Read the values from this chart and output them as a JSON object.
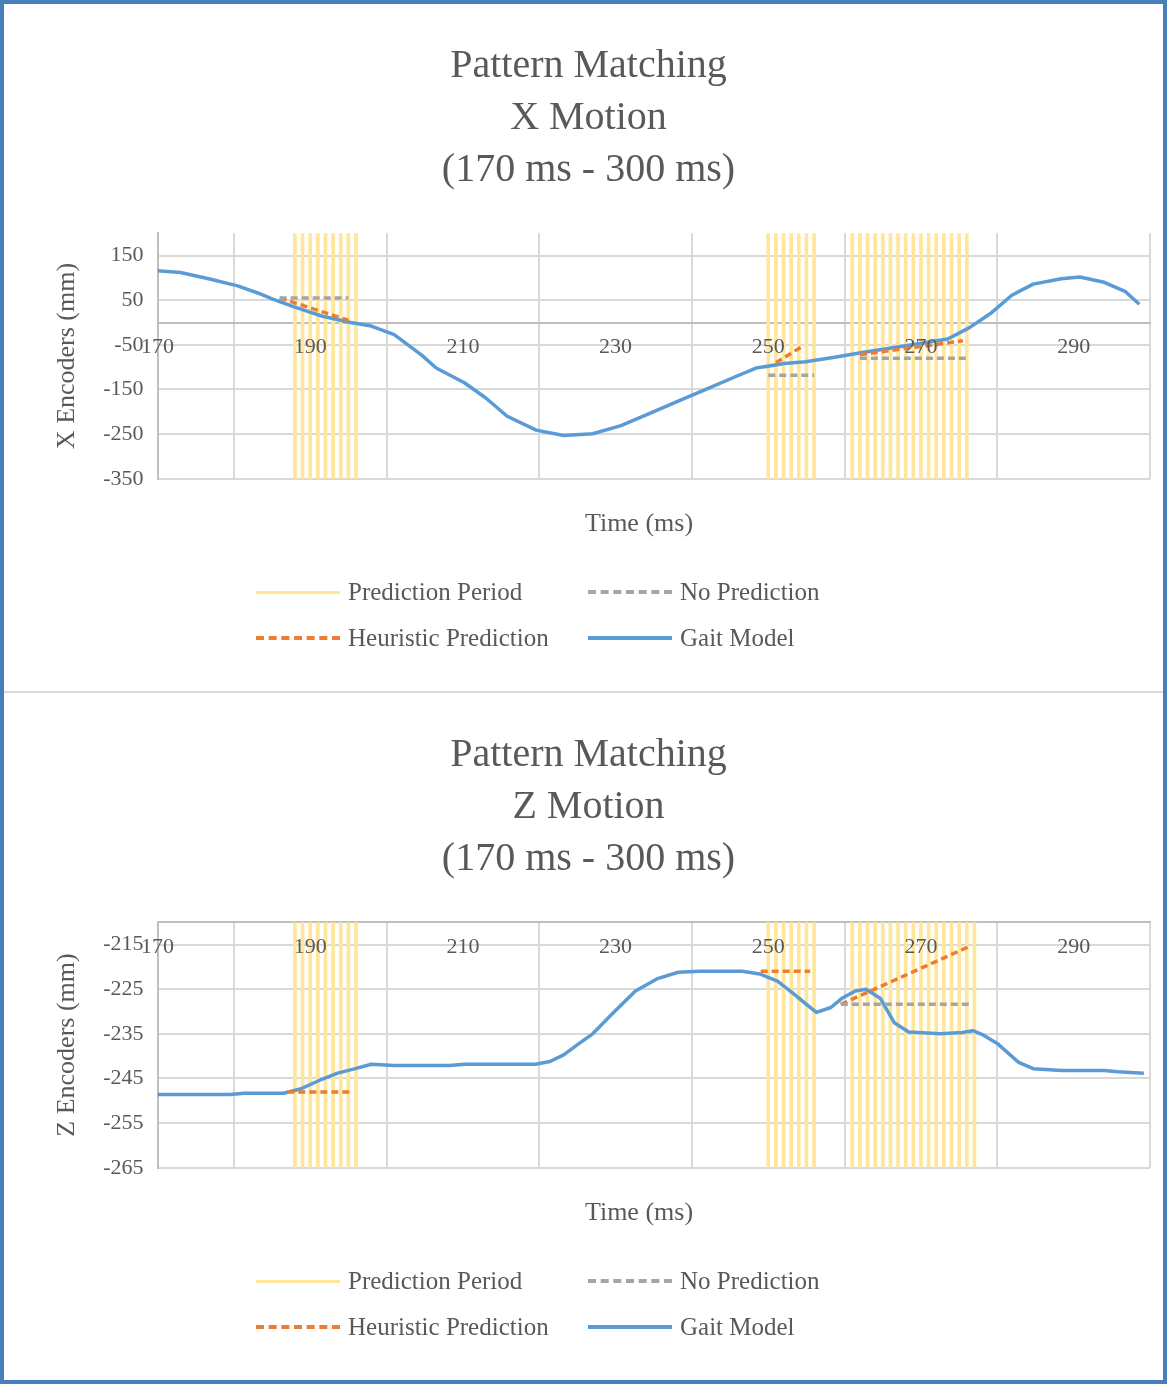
{
  "chart_data": [
    {
      "type": "line",
      "title": "Pattern Matching\nX Motion\n(170 ms - 300 ms)",
      "xlabel": "Time (ms)",
      "ylabel": "X Encoders (mm)",
      "xlim": [
        170,
        300
      ],
      "xticks": [
        170,
        190,
        210,
        230,
        250,
        270,
        290
      ],
      "ylim": [
        -350,
        200
      ],
      "yticks": [
        -350,
        -250,
        -150,
        -50,
        50,
        150
      ],
      "grid": true,
      "legend": "bottom",
      "series": [
        {
          "name": "Prediction Period",
          "type": "bar",
          "color": "#ffe699",
          "x": [
            188,
            189,
            190,
            191,
            192,
            193,
            194,
            195,
            196,
            250,
            251,
            252,
            253,
            254,
            255,
            256,
            261,
            262,
            263,
            264,
            265,
            266,
            267,
            268,
            269,
            270,
            271,
            272,
            273,
            274,
            275,
            276
          ],
          "base": [
            -350,
            -350,
            -350,
            -350,
            -350,
            -350,
            -350,
            -350,
            -350,
            -350,
            -350,
            -350,
            -350,
            -350,
            -350,
            -350,
            -350,
            -350,
            -350,
            -350,
            -350,
            -350,
            -350,
            -350,
            -350,
            -350,
            -350,
            -350,
            -350,
            -350,
            -350,
            -350
          ],
          "values": [
            550,
            550,
            550,
            550,
            550,
            550,
            550,
            550,
            550,
            550,
            550,
            550,
            550,
            550,
            550,
            550,
            550,
            550,
            550,
            550,
            550,
            550,
            550,
            550,
            550,
            550,
            550,
            550,
            550,
            550,
            550,
            550
          ]
        },
        {
          "name": "No Prediction",
          "color": "#a5a5a5",
          "line_style": "dashed",
          "x": [
            186,
            195
          ],
          "values": [
            55,
            55
          ]
        },
        {
          "color": "#a5a5a5",
          "line_style": "dashed",
          "x": [
            250,
            256
          ],
          "values": [
            -118,
            -118
          ]
        },
        {
          "color": "#a5a5a5",
          "line_style": "dashed",
          "x": [
            262,
            276
          ],
          "values": [
            -80,
            -80
          ]
        },
        {
          "name": "Heuristic Prediction",
          "color": "#ed7d31",
          "line_style": "dashed",
          "x": [
            186,
            195
          ],
          "values": [
            55,
            5
          ]
        },
        {
          "color": "#ed7d31",
          "line_style": "dashed",
          "x": [
            251,
            254.5
          ],
          "values": [
            -90,
            -53
          ]
        },
        {
          "color": "#ed7d31",
          "line_style": "dashed",
          "x": [
            262,
            275.5
          ],
          "values": [
            -72,
            -41
          ]
        },
        {
          "name": "Gait Model",
          "color": "#5b9bd5",
          "x": [
            170,
            173,
            176.7,
            180.5,
            183.3,
            185,
            187.9,
            191.6,
            195.3,
            198,
            201,
            204.6,
            206.5,
            210.2,
            213,
            215.8,
            219.6,
            223.2,
            227,
            230.7,
            234.4,
            238.2,
            241.9,
            245.6,
            248.4,
            252.1,
            254.9,
            258.7,
            262.3,
            266.1,
            269.9,
            273.5,
            276.3,
            279.1,
            281.9,
            284.7,
            288.4,
            290.8,
            294,
            296.8,
            298.6
          ],
          "values": [
            116,
            112,
            98,
            82,
            65,
            53,
            35,
            14,
            0,
            -8,
            -27,
            -73,
            -102,
            -135,
            -169,
            -210,
            -241,
            -253,
            -249,
            -231,
            -204,
            -176,
            -149,
            -122,
            -102,
            -92,
            -88,
            -78,
            -67,
            -57,
            -47,
            -37,
            -12,
            20,
            61,
            86,
            98,
            102,
            90,
            69,
            41
          ]
        }
      ]
    },
    {
      "type": "line",
      "title": "Pattern Matching\nZ Motion\n(170 ms - 300 ms)",
      "xlabel": "Time (ms)",
      "ylabel": "Z Encoders (mm)",
      "xlim": [
        170,
        300
      ],
      "xticks": [
        170,
        190,
        210,
        230,
        250,
        270,
        290
      ],
      "ylim": [
        -265,
        -210
      ],
      "yticks": [
        -265,
        -255,
        -245,
        -235,
        -225,
        -215
      ],
      "grid": true,
      "legend": "bottom",
      "series": [
        {
          "name": "Prediction Period",
          "type": "bar",
          "color": "#ffe699",
          "x": [
            188,
            189,
            190,
            191,
            192,
            193,
            194,
            195,
            196,
            250,
            251,
            252,
            253,
            254,
            255,
            256,
            261,
            262,
            263,
            264,
            265,
            266,
            267,
            268,
            269,
            270,
            271,
            272,
            273,
            274,
            275,
            276,
            277
          ],
          "base": [
            -265,
            -265,
            -265,
            -265,
            -265,
            -265,
            -265,
            -265,
            -265,
            -265,
            -265,
            -265,
            -265,
            -265,
            -265,
            -265,
            -265,
            -265,
            -265,
            -265,
            -265,
            -265,
            -265,
            -265,
            -265,
            -265,
            -265,
            -265,
            -265,
            -265,
            -265,
            -265,
            -265
          ],
          "values": [
            55,
            55,
            55,
            55,
            55,
            55,
            55,
            55,
            55,
            55,
            55,
            55,
            55,
            55,
            55,
            55,
            55,
            55,
            55,
            55,
            55,
            55,
            55,
            55,
            55,
            55,
            55,
            55,
            55,
            55,
            55,
            55,
            55
          ]
        },
        {
          "name": "No Prediction",
          "color": "#a5a5a5",
          "line_style": "dashed",
          "x": [
            259.5,
            276.5
          ],
          "values": [
            -228.4,
            -228.4
          ]
        },
        {
          "name": "Heuristic Prediction",
          "color": "#ed7d31",
          "line_style": "dashed",
          "x": [
            187,
            195.5
          ],
          "values": [
            -248,
            -248
          ]
        },
        {
          "color": "#ed7d31",
          "line_style": "dashed",
          "x": [
            249,
            255.5
          ],
          "values": [
            -221,
            -221
          ]
        },
        {
          "color": "#ed7d31",
          "line_style": "dashed",
          "x": [
            259.5,
            276.5
          ],
          "values": [
            -228.4,
            -215.3
          ]
        },
        {
          "name": "Gait Model",
          "color": "#5b9bd5",
          "x": [
            170,
            179.5,
            181.4,
            186.5,
            188.8,
            191.1,
            193.6,
            195.9,
            198,
            201,
            208.3,
            210.2,
            219.5,
            221.4,
            223.2,
            225.1,
            227,
            229.8,
            232.6,
            235.4,
            238.2,
            241,
            246.6,
            248.9,
            251.2,
            253.1,
            255,
            256.3,
            258.2,
            259.6,
            261.4,
            262.8,
            264.7,
            266.5,
            268.4,
            272.6,
            275.4,
            276.8,
            278.2,
            280.1,
            282.8,
            284.7,
            288.4,
            294,
            295.8,
            299.2
          ],
          "values": [
            -248.6,
            -248.6,
            -248.3,
            -248.3,
            -247.3,
            -245.5,
            -243.8,
            -242.8,
            -241.8,
            -242.1,
            -242.1,
            -241.8,
            -241.8,
            -241.2,
            -239.7,
            -237.3,
            -235,
            -230.1,
            -225.4,
            -222.7,
            -221.2,
            -221,
            -221,
            -221.6,
            -223.2,
            -225.7,
            -228.4,
            -230.2,
            -229.1,
            -227.1,
            -225.4,
            -225,
            -227.1,
            -232.5,
            -234.6,
            -235,
            -234.7,
            -234.3,
            -235.3,
            -237.3,
            -241.4,
            -242.8,
            -243.2,
            -243.2,
            -243.5,
            -243.8
          ]
        }
      ]
    }
  ]
}
